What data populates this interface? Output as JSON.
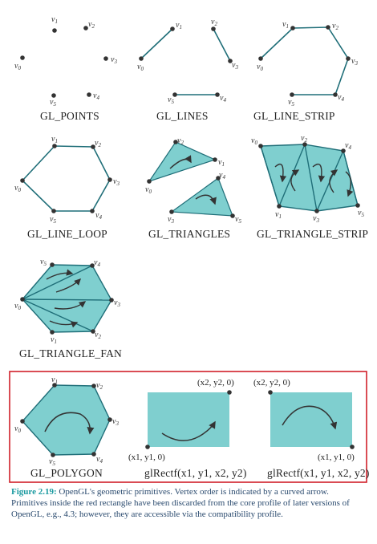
{
  "labels": {
    "points": "GL_POINTS",
    "lines": "GL_LINES",
    "line_strip": "GL_LINE_STRIP",
    "line_loop": "GL_LINE_LOOP",
    "triangles": "GL_TRIANGLES",
    "triangle_strip": "GL_TRIANGLE_STRIP",
    "triangle_fan": "GL_TRIANGLE_FAN",
    "polygon": "GL_POLYGON",
    "rect_a": "glRectf(x1, y1, x2, y2)",
    "rect_b": "glRectf(x1, y1, x2, y2)"
  },
  "coords": {
    "top_right": "(x2, y2, 0)",
    "bottom_left": "(x1, y1, 0)",
    "top_left": "(x2, y2, 0)",
    "bottom_right": "(x1, y1, 0)"
  },
  "vertex_names": [
    "v0",
    "v1",
    "v2",
    "v3",
    "v4",
    "v5"
  ],
  "caption": {
    "figure": "Figure 2.19:",
    "text": " OpenGL's geometric primitives. Vertex order is indicated by a curved arrow. Primitives inside the red rectangle have been discarded from the core profile of later versions of OpenGL, e.g., 4.3; however, they are accessible via the compatibility profile."
  },
  "colors": {
    "fill": "#7fcfcf",
    "edge": "#1f6e78",
    "highlight_box": "#d0202a",
    "figure_label": "#1a9aa0",
    "caption_text": "#2a4a6e"
  }
}
